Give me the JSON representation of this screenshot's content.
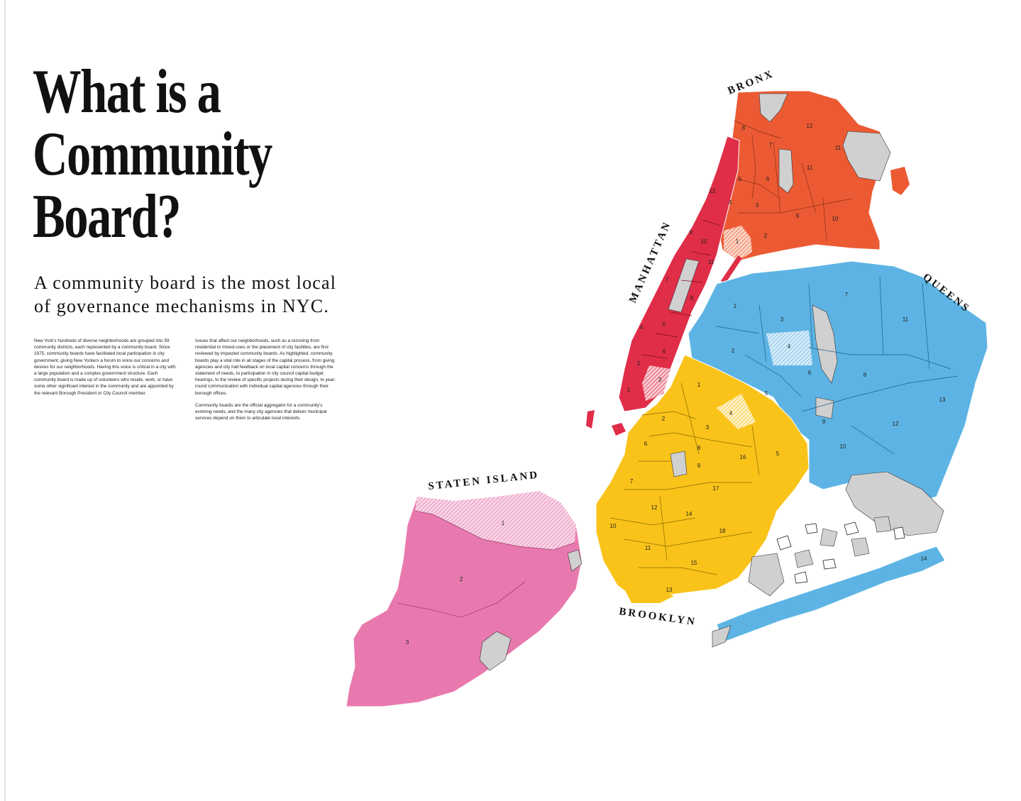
{
  "title": {
    "line1": "What is a",
    "line2": "Community",
    "line3": "Board?"
  },
  "subtitle": {
    "line1": "A community board is the most local",
    "line2": "of governance mechanisms in NYC."
  },
  "body": {
    "col1_p1": "New York's hundreds of diverse neighborhoods are grouped into 59 community districts, each represented by a community board. Since 1975, community boards have facilitated local participation in city government, giving New Yorkers a forum to voice our concerns and desires for our neighborhoods. Having this voice is critical in a city with a large population and a complex government structure. Each community board is made up of volunteers who reside, work, or have some other significant interest in the community and are appointed by the relevant Borough President or City Council member.",
    "col2_p1": "Issues that affect our neighborhoods, such as a rezoning from residential to mixed-uses or the placement of city facilities, are first reviewed by impacted community boards. As highlighted, community boards play a vital role in all stages of the capital process, from giving agencies and city hall feedback on local capital concerns through the statement of needs, to participation in city council capital budget hearings, to the review of specific projects during their design, to year-round communication with individual capital agencies through their borough offices.",
    "col2_p2": "Community boards are the official aggregator for a community's evolving needs, and the many city agencies that deliver municipal services depend on them to articulate local interests."
  },
  "map": {
    "colors": {
      "bronx": "#ec5a33",
      "manhattan": "#e02d48",
      "queens": "#5db4e4",
      "brooklyn": "#f9c31a",
      "staten_island": "#e879ae",
      "parks": "#d0d0d0"
    },
    "boroughs": {
      "bronx": "BRONX",
      "manhattan": "MANHATTAN",
      "queens": "QUEENS",
      "brooklyn": "BROOKLYN",
      "staten_island": "STATEN ISLAND"
    },
    "districts": {
      "bronx": [
        "8",
        "12",
        "7",
        "11",
        "5",
        "6",
        "11",
        "4",
        "3",
        "9",
        "10",
        "1",
        "2"
      ],
      "manhattan": [
        "12",
        "9",
        "10",
        "11",
        "7",
        "8",
        "4",
        "5",
        "6",
        "2",
        "3",
        "1"
      ],
      "queens": [
        "1",
        "3",
        "7",
        "11",
        "2",
        "4",
        "6",
        "5",
        "8",
        "13",
        "9",
        "12",
        "10",
        "14"
      ],
      "brooklyn": [
        "1",
        "2",
        "3",
        "4",
        "6",
        "8",
        "16",
        "5",
        "9",
        "7",
        "17",
        "12",
        "14",
        "10",
        "18",
        "11",
        "15",
        "13"
      ],
      "staten_island": [
        "1",
        "2",
        "3"
      ]
    }
  }
}
